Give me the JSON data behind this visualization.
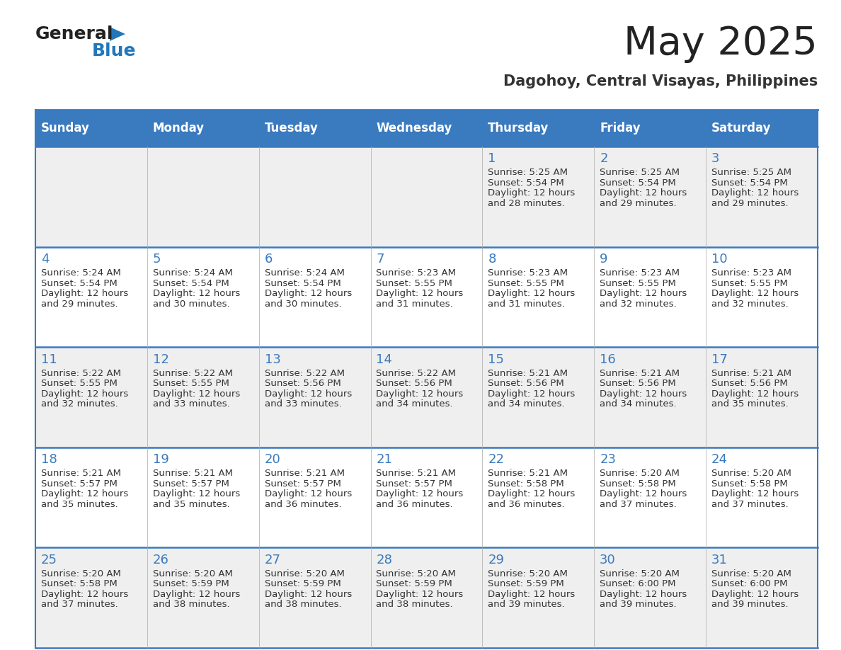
{
  "title": "May 2025",
  "subtitle": "Dagohoy, Central Visayas, Philippines",
  "header_bg": "#3a7abf",
  "header_text": "#ffffff",
  "header_days": [
    "Sunday",
    "Monday",
    "Tuesday",
    "Wednesday",
    "Thursday",
    "Friday",
    "Saturday"
  ],
  "row_bg": [
    "#efefef",
    "#ffffff",
    "#efefef",
    "#ffffff",
    "#efefef"
  ],
  "day_number_color": "#3a7abf",
  "cell_text_color": "#333333",
  "border_color": "#3a7abf",
  "divider_color": "#3a7abf",
  "bg_color": "#ffffff",
  "logo_text_color": "#222222",
  "logo_blue_color": "#2277bb",
  "title_color": "#222222",
  "subtitle_color": "#333333",
  "weeks": [
    [
      {
        "day": "",
        "sunrise": "",
        "sunset": "",
        "daylight": ""
      },
      {
        "day": "",
        "sunrise": "",
        "sunset": "",
        "daylight": ""
      },
      {
        "day": "",
        "sunrise": "",
        "sunset": "",
        "daylight": ""
      },
      {
        "day": "",
        "sunrise": "",
        "sunset": "",
        "daylight": ""
      },
      {
        "day": "1",
        "sunrise": "5:25 AM",
        "sunset": "5:54 PM",
        "daylight": "12 hours and 28 minutes."
      },
      {
        "day": "2",
        "sunrise": "5:25 AM",
        "sunset": "5:54 PM",
        "daylight": "12 hours and 29 minutes."
      },
      {
        "day": "3",
        "sunrise": "5:25 AM",
        "sunset": "5:54 PM",
        "daylight": "12 hours and 29 minutes."
      }
    ],
    [
      {
        "day": "4",
        "sunrise": "5:24 AM",
        "sunset": "5:54 PM",
        "daylight": "12 hours and 29 minutes."
      },
      {
        "day": "5",
        "sunrise": "5:24 AM",
        "sunset": "5:54 PM",
        "daylight": "12 hours and 30 minutes."
      },
      {
        "day": "6",
        "sunrise": "5:24 AM",
        "sunset": "5:54 PM",
        "daylight": "12 hours and 30 minutes."
      },
      {
        "day": "7",
        "sunrise": "5:23 AM",
        "sunset": "5:55 PM",
        "daylight": "12 hours and 31 minutes."
      },
      {
        "day": "8",
        "sunrise": "5:23 AM",
        "sunset": "5:55 PM",
        "daylight": "12 hours and 31 minutes."
      },
      {
        "day": "9",
        "sunrise": "5:23 AM",
        "sunset": "5:55 PM",
        "daylight": "12 hours and 32 minutes."
      },
      {
        "day": "10",
        "sunrise": "5:23 AM",
        "sunset": "5:55 PM",
        "daylight": "12 hours and 32 minutes."
      }
    ],
    [
      {
        "day": "11",
        "sunrise": "5:22 AM",
        "sunset": "5:55 PM",
        "daylight": "12 hours and 32 minutes."
      },
      {
        "day": "12",
        "sunrise": "5:22 AM",
        "sunset": "5:55 PM",
        "daylight": "12 hours and 33 minutes."
      },
      {
        "day": "13",
        "sunrise": "5:22 AM",
        "sunset": "5:56 PM",
        "daylight": "12 hours and 33 minutes."
      },
      {
        "day": "14",
        "sunrise": "5:22 AM",
        "sunset": "5:56 PM",
        "daylight": "12 hours and 34 minutes."
      },
      {
        "day": "15",
        "sunrise": "5:21 AM",
        "sunset": "5:56 PM",
        "daylight": "12 hours and 34 minutes."
      },
      {
        "day": "16",
        "sunrise": "5:21 AM",
        "sunset": "5:56 PM",
        "daylight": "12 hours and 34 minutes."
      },
      {
        "day": "17",
        "sunrise": "5:21 AM",
        "sunset": "5:56 PM",
        "daylight": "12 hours and 35 minutes."
      }
    ],
    [
      {
        "day": "18",
        "sunrise": "5:21 AM",
        "sunset": "5:57 PM",
        "daylight": "12 hours and 35 minutes."
      },
      {
        "day": "19",
        "sunrise": "5:21 AM",
        "sunset": "5:57 PM",
        "daylight": "12 hours and 35 minutes."
      },
      {
        "day": "20",
        "sunrise": "5:21 AM",
        "sunset": "5:57 PM",
        "daylight": "12 hours and 36 minutes."
      },
      {
        "day": "21",
        "sunrise": "5:21 AM",
        "sunset": "5:57 PM",
        "daylight": "12 hours and 36 minutes."
      },
      {
        "day": "22",
        "sunrise": "5:21 AM",
        "sunset": "5:58 PM",
        "daylight": "12 hours and 36 minutes."
      },
      {
        "day": "23",
        "sunrise": "5:20 AM",
        "sunset": "5:58 PM",
        "daylight": "12 hours and 37 minutes."
      },
      {
        "day": "24",
        "sunrise": "5:20 AM",
        "sunset": "5:58 PM",
        "daylight": "12 hours and 37 minutes."
      }
    ],
    [
      {
        "day": "25",
        "sunrise": "5:20 AM",
        "sunset": "5:58 PM",
        "daylight": "12 hours and 37 minutes."
      },
      {
        "day": "26",
        "sunrise": "5:20 AM",
        "sunset": "5:59 PM",
        "daylight": "12 hours and 38 minutes."
      },
      {
        "day": "27",
        "sunrise": "5:20 AM",
        "sunset": "5:59 PM",
        "daylight": "12 hours and 38 minutes."
      },
      {
        "day": "28",
        "sunrise": "5:20 AM",
        "sunset": "5:59 PM",
        "daylight": "12 hours and 38 minutes."
      },
      {
        "day": "29",
        "sunrise": "5:20 AM",
        "sunset": "5:59 PM",
        "daylight": "12 hours and 39 minutes."
      },
      {
        "day": "30",
        "sunrise": "5:20 AM",
        "sunset": "6:00 PM",
        "daylight": "12 hours and 39 minutes."
      },
      {
        "day": "31",
        "sunrise": "5:20 AM",
        "sunset": "6:00 PM",
        "daylight": "12 hours and 39 minutes."
      }
    ]
  ]
}
